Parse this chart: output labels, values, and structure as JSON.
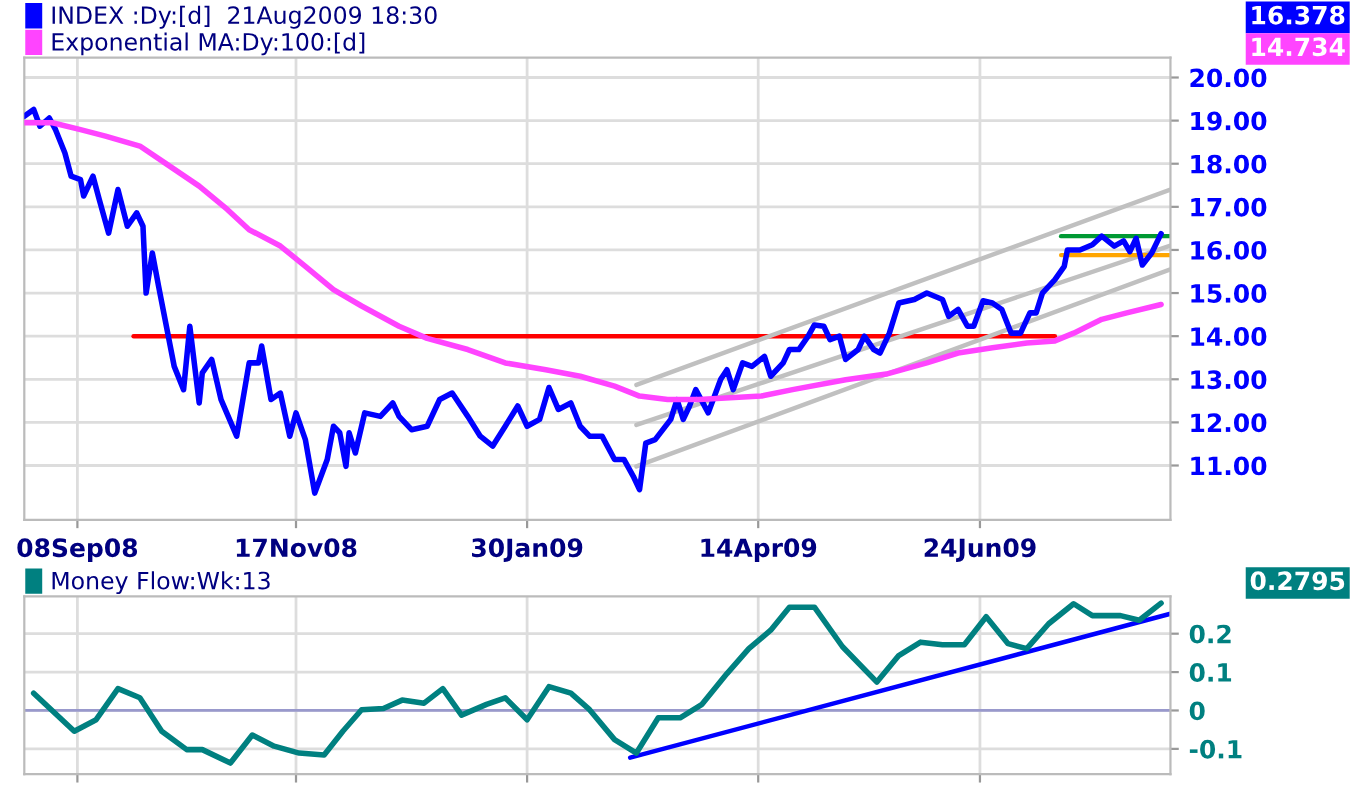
{
  "chart_data": [
    {
      "type": "line",
      "legend": "top left",
      "grid": true,
      "xlim": [
        "2008-08-22",
        "2009-08-24"
      ],
      "ylim": [
        9.74,
        20.46
      ],
      "xticks": [
        {
          "value": "2008-09-08",
          "label": "08Sep08"
        },
        {
          "value": "2008-11-17",
          "label": "17Nov08"
        },
        {
          "value": "2009-01-30",
          "label": "30Jan09"
        },
        {
          "value": "2009-04-14",
          "label": "14Apr09"
        },
        {
          "value": "2009-06-24",
          "label": "24Jun09"
        }
      ],
      "yticks": [
        {
          "value": 11,
          "label": "11.00"
        },
        {
          "value": 12,
          "label": "12.00"
        },
        {
          "value": 13,
          "label": "13.00"
        },
        {
          "value": 14,
          "label": "14.00"
        },
        {
          "value": 15,
          "label": "15.00"
        },
        {
          "value": 16,
          "label": "16.00"
        },
        {
          "value": 17,
          "label": "17.00"
        },
        {
          "value": 18,
          "label": "18.00"
        },
        {
          "value": 19,
          "label": "19.00"
        },
        {
          "value": 20,
          "label": "20.00"
        }
      ],
      "annotations": [
        "16.378",
        "14.734"
      ],
      "series": [
        {
          "name": "INDEX :Dy:[d]  21Aug2009 18:30",
          "color": "#0000ff",
          "x": [
            "2008-08-22",
            "2008-08-25",
            "2008-08-27",
            "2008-08-30",
            "2008-09-01",
            "2008-09-04",
            "2008-09-06",
            "2008-09-09",
            "2008-09-10",
            "2008-09-13",
            "2008-09-15",
            "2008-09-18",
            "2008-09-21",
            "2008-09-24",
            "2008-09-27",
            "2008-09-29",
            "2008-09-30",
            "2008-10-02",
            "2008-10-04",
            "2008-10-09",
            "2008-10-12",
            "2008-10-14",
            "2008-10-17",
            "2008-10-18",
            "2008-10-21",
            "2008-10-24",
            "2008-10-29",
            "2008-11-02",
            "2008-11-05",
            "2008-11-06",
            "2008-11-09",
            "2008-11-12",
            "2008-11-15",
            "2008-11-17",
            "2008-11-20",
            "2008-11-23",
            "2008-11-27",
            "2008-11-29",
            "2008-12-01",
            "2008-12-03",
            "2008-12-04",
            "2008-12-06",
            "2008-12-09",
            "2008-12-14",
            "2008-12-18",
            "2008-12-20",
            "2008-12-24",
            "2008-12-29",
            "2009-01-02",
            "2009-01-06",
            "2009-01-11",
            "2009-01-15",
            "2009-01-19",
            "2009-01-23",
            "2009-01-27",
            "2009-01-30",
            "2009-02-03",
            "2009-02-06",
            "2009-02-09",
            "2009-02-13",
            "2009-02-16",
            "2009-02-19",
            "2009-02-23",
            "2009-02-27",
            "2009-03-02",
            "2009-03-05",
            "2009-03-07",
            "2009-03-09",
            "2009-03-12",
            "2009-03-17",
            "2009-03-19",
            "2009-03-21",
            "2009-03-23",
            "2009-03-25",
            "2009-03-29",
            "2009-04-02",
            "2009-04-04",
            "2009-04-06",
            "2009-04-09",
            "2009-04-12",
            "2009-04-16",
            "2009-04-18",
            "2009-04-22",
            "2009-04-24",
            "2009-04-27",
            "2009-04-30",
            "2009-05-02",
            "2009-05-05",
            "2009-05-07",
            "2009-05-10",
            "2009-05-12",
            "2009-05-16",
            "2009-05-18",
            "2009-05-21",
            "2009-05-23",
            "2009-05-26",
            "2009-05-29",
            "2009-06-03",
            "2009-06-07",
            "2009-06-12",
            "2009-06-14",
            "2009-06-17",
            "2009-06-20",
            "2009-06-22",
            "2009-06-25",
            "2009-06-28",
            "2009-07-01",
            "2009-07-04",
            "2009-07-07",
            "2009-07-10",
            "2009-07-12",
            "2009-07-14",
            "2009-07-18",
            "2009-07-21",
            "2009-07-22",
            "2009-07-26",
            "2009-07-30",
            "2009-08-02",
            "2009-08-06",
            "2009-08-09",
            "2009-08-11",
            "2009-08-13",
            "2009-08-15",
            "2009-08-18",
            "2009-08-21"
          ],
          "values": [
            19.1,
            19.26,
            18.87,
            19.06,
            18.79,
            18.25,
            17.71,
            17.63,
            17.25,
            17.71,
            17.17,
            16.39,
            17.4,
            16.55,
            16.86,
            16.55,
            15.0,
            15.93,
            15.16,
            13.3,
            12.76,
            14.23,
            12.45,
            13.15,
            13.46,
            12.53,
            11.68,
            13.38,
            13.38,
            13.77,
            12.53,
            12.68,
            11.68,
            12.22,
            11.6,
            10.36,
            11.14,
            11.91,
            11.76,
            10.98,
            11.76,
            11.29,
            12.22,
            12.14,
            12.45,
            12.14,
            11.83,
            11.91,
            12.53,
            12.68,
            12.14,
            11.68,
            11.45,
            11.91,
            12.38,
            11.91,
            12.07,
            12.81,
            12.3,
            12.45,
            11.91,
            11.68,
            11.68,
            11.14,
            11.14,
            10.75,
            10.44,
            11.52,
            11.6,
            12.07,
            12.53,
            12.07,
            12.38,
            12.76,
            12.22,
            13.0,
            13.22,
            12.76,
            13.38,
            13.3,
            13.53,
            13.07,
            13.38,
            13.69,
            13.69,
            14.0,
            14.26,
            14.23,
            13.92,
            14.0,
            13.46,
            13.69,
            14.0,
            13.69,
            13.61,
            14.07,
            14.77,
            14.85,
            15.0,
            14.85,
            14.46,
            14.62,
            14.23,
            14.23,
            14.82,
            14.77,
            14.62,
            14.07,
            14.07,
            14.54,
            14.54,
            15.0,
            15.31,
            15.62,
            16.0,
            16.0,
            16.12,
            16.32,
            16.09,
            16.21,
            15.96,
            16.27,
            15.65,
            15.93,
            16.378
          ]
        },
        {
          "name": "Exponential MA:Dy:100:[d]",
          "color": "#ff44ff",
          "x": [
            "2008-08-22",
            "2008-08-31",
            "2008-09-09",
            "2008-09-17",
            "2008-09-28",
            "2008-10-06",
            "2008-10-17",
            "2008-10-26",
            "2008-11-02",
            "2008-11-12",
            "2008-11-20",
            "2008-11-29",
            "2008-12-08",
            "2008-12-20",
            "2008-12-29",
            "2009-01-11",
            "2009-01-23",
            "2009-02-05",
            "2009-02-16",
            "2009-02-27",
            "2009-03-07",
            "2009-03-16",
            "2009-03-26",
            "2009-04-15",
            "2009-04-25",
            "2009-05-12",
            "2009-05-25",
            "2009-06-07",
            "2009-06-17",
            "2009-06-28",
            "2009-07-09",
            "2009-07-18",
            "2009-07-24",
            "2009-08-02",
            "2009-08-10",
            "2009-08-21"
          ],
          "values": [
            18.95,
            18.95,
            18.79,
            18.64,
            18.41,
            18.02,
            17.48,
            16.94,
            16.47,
            16.09,
            15.62,
            15.08,
            14.7,
            14.23,
            13.95,
            13.69,
            13.38,
            13.22,
            13.07,
            12.84,
            12.61,
            12.53,
            12.53,
            12.61,
            12.76,
            12.99,
            13.12,
            13.38,
            13.61,
            13.73,
            13.84,
            13.89,
            14.07,
            14.39,
            14.54,
            14.734
          ]
        },
        {
          "color": "#ff0000",
          "x": [
            "2008-09-26",
            "2009-07-18"
          ],
          "values": [
            14.0,
            14.0
          ]
        },
        {
          "color": "#c0c0c0",
          "x": [
            "2009-03-06",
            "2009-08-24"
          ],
          "values": [
            12.87,
            17.4
          ]
        },
        {
          "color": "#c0c0c0",
          "x": [
            "2009-03-06",
            "2009-08-24"
          ],
          "values": [
            11.94,
            16.1
          ]
        },
        {
          "color": "#c0c0c0",
          "x": [
            "2009-03-06",
            "2009-08-24"
          ],
          "values": [
            10.98,
            15.55
          ]
        },
        {
          "color": "#009933",
          "x": [
            "2009-07-20",
            "2009-08-24"
          ],
          "values": [
            16.32,
            16.32
          ]
        },
        {
          "color": "#ffa500",
          "x": [
            "2009-07-20",
            "2009-08-24"
          ],
          "values": [
            15.88,
            15.88
          ]
        }
      ]
    },
    {
      "type": "line",
      "legend": "top left",
      "grid": true,
      "tick_labels": "y",
      "xlim": [
        "2008-08-22",
        "2009-08-24"
      ],
      "ylim": [
        -0.166,
        0.297
      ],
      "xticks": [
        {
          "value": "2008-09-08",
          "label": null
        },
        {
          "value": "2008-11-17",
          "label": null
        },
        {
          "value": "2009-01-30",
          "label": null
        },
        {
          "value": "2009-04-14",
          "label": null
        },
        {
          "value": "2009-06-24",
          "label": null
        }
      ],
      "yticks": [
        -0.1,
        0,
        0.1,
        0.2
      ],
      "ref_lines": [
        {
          "axis": "y",
          "value": 0,
          "color": "#9999cc"
        }
      ],
      "annotations": [
        "0.2795"
      ],
      "series": [
        {
          "name": "Money Flow:Wk:13",
          "color": "#008080",
          "x": [
            "2008-08-25",
            "2008-09-07",
            "2008-09-14",
            "2008-09-21",
            "2008-09-28",
            "2008-10-05",
            "2008-10-13",
            "2008-10-18",
            "2008-10-27",
            "2008-11-03",
            "2008-11-10",
            "2008-11-18",
            "2008-11-26",
            "2008-12-02",
            "2008-12-08",
            "2008-12-15",
            "2008-12-21",
            "2008-12-28",
            "2009-01-03",
            "2009-01-09",
            "2009-01-17",
            "2009-01-23",
            "2009-01-30",
            "2009-02-06",
            "2009-02-13",
            "2009-02-19",
            "2009-02-27",
            "2009-03-06",
            "2009-03-13",
            "2009-03-20",
            "2009-03-27",
            "2009-04-04",
            "2009-04-11",
            "2009-04-18",
            "2009-04-24",
            "2009-05-02",
            "2009-05-11",
            "2009-05-22",
            "2009-05-29",
            "2009-06-05",
            "2009-06-12",
            "2009-06-19",
            "2009-06-26",
            "2009-07-03",
            "2009-07-09",
            "2009-07-16",
            "2009-07-24",
            "2009-07-30",
            "2009-08-08",
            "2009-08-14",
            "2009-08-21"
          ],
          "values": [
            0.045,
            -0.054,
            -0.024,
            0.057,
            0.033,
            -0.054,
            -0.102,
            -0.102,
            -0.137,
            -0.064,
            -0.093,
            -0.111,
            -0.116,
            -0.054,
            0.002,
            0.005,
            0.027,
            0.019,
            0.057,
            -0.012,
            0.016,
            0.033,
            -0.024,
            0.062,
            0.045,
            0.002,
            -0.076,
            -0.111,
            -0.019,
            -0.019,
            0.016,
            0.096,
            0.161,
            0.209,
            0.269,
            0.269,
            0.166,
            0.074,
            0.143,
            0.178,
            0.171,
            0.171,
            0.244,
            0.174,
            0.161,
            0.226,
            0.278,
            0.247,
            0.247,
            0.235,
            0.2795
          ]
        },
        {
          "color": "#0000ff",
          "x": [
            "2009-03-04",
            "2009-08-24"
          ],
          "values": [
            -0.123,
            0.252
          ]
        }
      ]
    }
  ]
}
